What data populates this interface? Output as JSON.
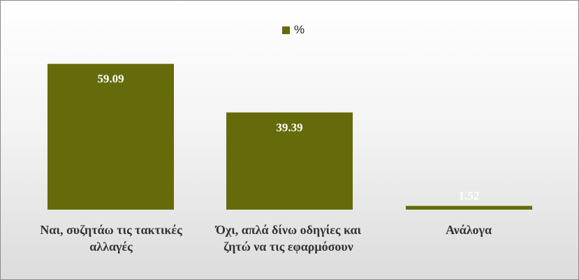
{
  "chart_data": {
    "type": "bar",
    "categories": [
      "Ναι, συζητάω τις τακτικές αλλαγές",
      "Όχι, απλά δίνω οδηγίες και ζητώ να τις εφαρμόσουν",
      "Ανάλογα"
    ],
    "series": [
      {
        "name": "%",
        "values": [
          59.09,
          39.39,
          1.52
        ],
        "color": "#656b0a"
      }
    ],
    "data_labels": [
      "59.09",
      "39.39",
      "1.52"
    ],
    "ylim": [
      0,
      70
    ],
    "legend": "top-center",
    "grid": false,
    "data_label_color": "#ffffff"
  }
}
